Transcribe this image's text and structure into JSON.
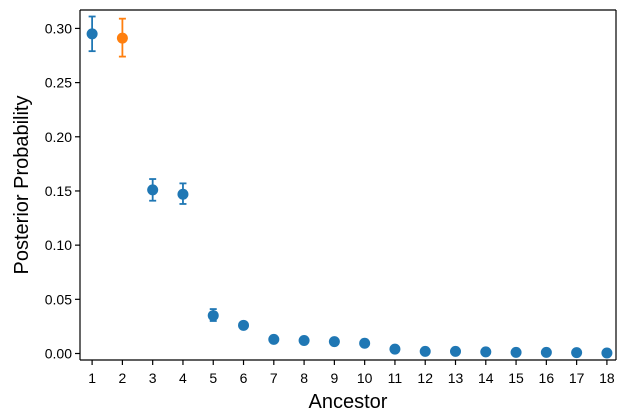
{
  "chart_data": {
    "type": "scatter",
    "xlabel": "Ancestor",
    "ylabel": "Posterior Probability",
    "x_ticks": [
      "1",
      "2",
      "3",
      "4",
      "5",
      "6",
      "7",
      "8",
      "9",
      "10",
      "11",
      "12",
      "13",
      "14",
      "15",
      "16",
      "17",
      "18"
    ],
    "y_ticks": [
      "0.00",
      "0.05",
      "0.10",
      "0.15",
      "0.20",
      "0.25",
      "0.30"
    ],
    "xlim": [
      0.6,
      18.3
    ],
    "ylim": [
      -0.006,
      0.317
    ],
    "grid": false,
    "points": [
      {
        "x": 1,
        "y": 0.295,
        "err_low": 0.279,
        "err_high": 0.311,
        "color": "#1f77b4"
      },
      {
        "x": 2,
        "y": 0.291,
        "err_low": 0.274,
        "err_high": 0.309,
        "color": "#ff7f0e"
      },
      {
        "x": 3,
        "y": 0.151,
        "err_low": 0.141,
        "err_high": 0.161,
        "color": "#1f77b4"
      },
      {
        "x": 4,
        "y": 0.147,
        "err_low": 0.138,
        "err_high": 0.157,
        "color": "#1f77b4"
      },
      {
        "x": 5,
        "y": 0.035,
        "err_low": 0.03,
        "err_high": 0.041,
        "color": "#1f77b4"
      },
      {
        "x": 6,
        "y": 0.026,
        "err_low": null,
        "err_high": null,
        "color": "#1f77b4"
      },
      {
        "x": 7,
        "y": 0.013,
        "err_low": null,
        "err_high": null,
        "color": "#1f77b4"
      },
      {
        "x": 8,
        "y": 0.012,
        "err_low": null,
        "err_high": null,
        "color": "#1f77b4"
      },
      {
        "x": 9,
        "y": 0.011,
        "err_low": null,
        "err_high": null,
        "color": "#1f77b4"
      },
      {
        "x": 10,
        "y": 0.0095,
        "err_low": null,
        "err_high": null,
        "color": "#1f77b4"
      },
      {
        "x": 11,
        "y": 0.004,
        "err_low": null,
        "err_high": null,
        "color": "#1f77b4"
      },
      {
        "x": 12,
        "y": 0.002,
        "err_low": null,
        "err_high": null,
        "color": "#1f77b4"
      },
      {
        "x": 13,
        "y": 0.002,
        "err_low": null,
        "err_high": null,
        "color": "#1f77b4"
      },
      {
        "x": 14,
        "y": 0.0015,
        "err_low": null,
        "err_high": null,
        "color": "#1f77b4"
      },
      {
        "x": 15,
        "y": 0.001,
        "err_low": null,
        "err_high": null,
        "color": "#1f77b4"
      },
      {
        "x": 16,
        "y": 0.001,
        "err_low": null,
        "err_high": null,
        "color": "#1f77b4"
      },
      {
        "x": 17,
        "y": 0.0008,
        "err_low": null,
        "err_high": null,
        "color": "#1f77b4"
      },
      {
        "x": 18,
        "y": 0.0005,
        "err_low": null,
        "err_high": null,
        "color": "#1f77b4"
      }
    ]
  }
}
